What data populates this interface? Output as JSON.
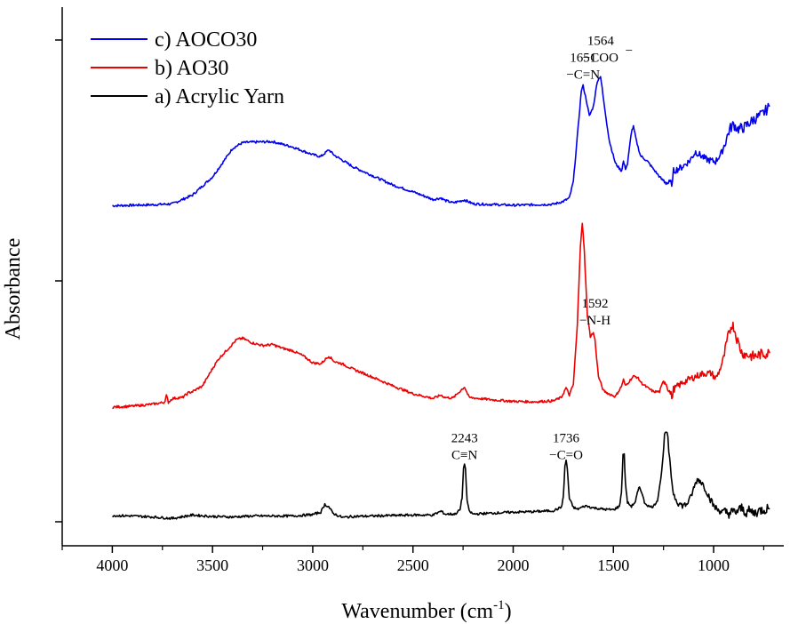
{
  "chart_data": {
    "type": "line",
    "title": "",
    "xlabel": "Wavenumber (cm",
    "xlabel_sup": "-1",
    "xlabel_close": ")",
    "ylabel": "Absorbance",
    "xlim": [
      4250,
      650
    ],
    "x_reversed": true,
    "ylim": [
      0,
      1
    ],
    "x_ticks": [
      4000,
      3500,
      3000,
      2500,
      2000,
      1500,
      1000
    ],
    "grid": false,
    "legend_position": "top-left",
    "series": [
      {
        "name": "c) AOCO30",
        "color": "#0000ee",
        "baseline": 0.655,
        "points": [
          [
            4000,
            0.656
          ],
          [
            3800,
            0.658
          ],
          [
            3700,
            0.66
          ],
          [
            3600,
            0.678
          ],
          [
            3500,
            0.716
          ],
          [
            3450,
            0.745
          ],
          [
            3400,
            0.775
          ],
          [
            3350,
            0.787
          ],
          [
            3300,
            0.788
          ],
          [
            3200,
            0.789
          ],
          [
            3100,
            0.778
          ],
          [
            3000,
            0.762
          ],
          [
            2960,
            0.758
          ],
          [
            2920,
            0.772
          ],
          [
            2890,
            0.76
          ],
          [
            2850,
            0.75
          ],
          [
            2800,
            0.737
          ],
          [
            2700,
            0.718
          ],
          [
            2600,
            0.699
          ],
          [
            2500,
            0.685
          ],
          [
            2400,
            0.669
          ],
          [
            2360,
            0.672
          ],
          [
            2340,
            0.667
          ],
          [
            2300,
            0.662
          ],
          [
            2243,
            0.668
          ],
          [
            2200,
            0.66
          ],
          [
            2000,
            0.657
          ],
          [
            1900,
            0.658
          ],
          [
            1800,
            0.659
          ],
          [
            1750,
            0.665
          ],
          [
            1720,
            0.672
          ],
          [
            1700,
            0.706
          ],
          [
            1680,
            0.8
          ],
          [
            1660,
            0.895
          ],
          [
            1651,
            0.905
          ],
          [
            1635,
            0.875
          ],
          [
            1620,
            0.842
          ],
          [
            1600,
            0.862
          ],
          [
            1580,
            0.915
          ],
          [
            1564,
            0.925
          ],
          [
            1545,
            0.862
          ],
          [
            1520,
            0.79
          ],
          [
            1490,
            0.744
          ],
          [
            1460,
            0.728
          ],
          [
            1450,
            0.748
          ],
          [
            1440,
            0.733
          ],
          [
            1430,
            0.742
          ],
          [
            1410,
            0.81
          ],
          [
            1400,
            0.82
          ],
          [
            1385,
            0.79
          ],
          [
            1365,
            0.76
          ],
          [
            1330,
            0.748
          ],
          [
            1300,
            0.732
          ],
          [
            1260,
            0.711
          ],
          [
            1230,
            0.703
          ],
          [
            1205,
            0.703
          ],
          [
            1200,
            0.728
          ],
          [
            1160,
            0.736
          ],
          [
            1120,
            0.749
          ],
          [
            1100,
            0.762
          ],
          [
            1090,
            0.768
          ],
          [
            1070,
            0.762
          ],
          [
            1040,
            0.753
          ],
          [
            1010,
            0.749
          ],
          [
            990,
            0.748
          ],
          [
            960,
            0.766
          ],
          [
            940,
            0.79
          ],
          [
            920,
            0.815
          ],
          [
            900,
            0.825
          ],
          [
            880,
            0.815
          ],
          [
            850,
            0.818
          ],
          [
            800,
            0.835
          ],
          [
            760,
            0.845
          ],
          [
            720,
            0.862
          ]
        ]
      },
      {
        "name": "b) AO30",
        "color": "#ee0000",
        "baseline": 0.237,
        "points": [
          [
            4000,
            0.238
          ],
          [
            3900,
            0.24
          ],
          [
            3800,
            0.244
          ],
          [
            3740,
            0.248
          ],
          [
            3730,
            0.262
          ],
          [
            3720,
            0.248
          ],
          [
            3700,
            0.256
          ],
          [
            3650,
            0.258
          ],
          [
            3620,
            0.268
          ],
          [
            3600,
            0.27
          ],
          [
            3550,
            0.282
          ],
          [
            3500,
            0.318
          ],
          [
            3470,
            0.338
          ],
          [
            3420,
            0.36
          ],
          [
            3380,
            0.378
          ],
          [
            3350,
            0.381
          ],
          [
            3300,
            0.371
          ],
          [
            3250,
            0.366
          ],
          [
            3200,
            0.368
          ],
          [
            3150,
            0.36
          ],
          [
            3100,
            0.355
          ],
          [
            3050,
            0.345
          ],
          [
            3000,
            0.33
          ],
          [
            2960,
            0.328
          ],
          [
            2920,
            0.344
          ],
          [
            2890,
            0.332
          ],
          [
            2860,
            0.329
          ],
          [
            2800,
            0.317
          ],
          [
            2700,
            0.3
          ],
          [
            2600,
            0.282
          ],
          [
            2500,
            0.266
          ],
          [
            2400,
            0.256
          ],
          [
            2360,
            0.263
          ],
          [
            2340,
            0.258
          ],
          [
            2300,
            0.257
          ],
          [
            2243,
            0.28
          ],
          [
            2220,
            0.258
          ],
          [
            2100,
            0.253
          ],
          [
            2000,
            0.25
          ],
          [
            1900,
            0.249
          ],
          [
            1800,
            0.251
          ],
          [
            1760,
            0.258
          ],
          [
            1736,
            0.278
          ],
          [
            1720,
            0.263
          ],
          [
            1700,
            0.285
          ],
          [
            1680,
            0.408
          ],
          [
            1665,
            0.572
          ],
          [
            1655,
            0.62
          ],
          [
            1645,
            0.56
          ],
          [
            1630,
            0.428
          ],
          [
            1615,
            0.385
          ],
          [
            1600,
            0.392
          ],
          [
            1592,
            0.378
          ],
          [
            1575,
            0.302
          ],
          [
            1550,
            0.272
          ],
          [
            1520,
            0.265
          ],
          [
            1490,
            0.26
          ],
          [
            1460,
            0.281
          ],
          [
            1450,
            0.295
          ],
          [
            1440,
            0.282
          ],
          [
            1420,
            0.292
          ],
          [
            1400,
            0.302
          ],
          [
            1380,
            0.3
          ],
          [
            1360,
            0.288
          ],
          [
            1330,
            0.278
          ],
          [
            1300,
            0.27
          ],
          [
            1270,
            0.27
          ],
          [
            1250,
            0.293
          ],
          [
            1240,
            0.29
          ],
          [
            1220,
            0.27
          ],
          [
            1205,
            0.258
          ],
          [
            1200,
            0.275
          ],
          [
            1150,
            0.29
          ],
          [
            1100,
            0.3
          ],
          [
            1050,
            0.308
          ],
          [
            1010,
            0.308
          ],
          [
            990,
            0.297
          ],
          [
            970,
            0.314
          ],
          [
            950,
            0.34
          ],
          [
            930,
            0.38
          ],
          [
            910,
            0.41
          ],
          [
            900,
            0.405
          ],
          [
            880,
            0.375
          ],
          [
            860,
            0.352
          ],
          [
            840,
            0.347
          ],
          [
            800,
            0.343
          ],
          [
            760,
            0.348
          ],
          [
            720,
            0.35
          ]
        ]
      },
      {
        "name": "a) Acrylic Yarn",
        "color": "#000000",
        "baseline": 0.0,
        "points": [
          [
            4000,
            0.013
          ],
          [
            3900,
            0.012
          ],
          [
            3800,
            0.01
          ],
          [
            3700,
            0.007
          ],
          [
            3600,
            0.014
          ],
          [
            3500,
            0.011
          ],
          [
            3400,
            0.01
          ],
          [
            3300,
            0.012
          ],
          [
            3200,
            0.012
          ],
          [
            3100,
            0.012
          ],
          [
            3000,
            0.015
          ],
          [
            2960,
            0.02
          ],
          [
            2940,
            0.036
          ],
          [
            2920,
            0.031
          ],
          [
            2900,
            0.018
          ],
          [
            2870,
            0.012
          ],
          [
            2850,
            0.009
          ],
          [
            2800,
            0.011
          ],
          [
            2700,
            0.012
          ],
          [
            2600,
            0.013
          ],
          [
            2500,
            0.014
          ],
          [
            2400,
            0.014
          ],
          [
            2360,
            0.022
          ],
          [
            2340,
            0.016
          ],
          [
            2290,
            0.016
          ],
          [
            2265,
            0.025
          ],
          [
            2255,
            0.05
          ],
          [
            2248,
            0.11
          ],
          [
            2243,
            0.122
          ],
          [
            2238,
            0.108
          ],
          [
            2230,
            0.045
          ],
          [
            2220,
            0.022
          ],
          [
            2200,
            0.016
          ],
          [
            2100,
            0.018
          ],
          [
            2000,
            0.02
          ],
          [
            1900,
            0.021
          ],
          [
            1800,
            0.023
          ],
          [
            1760,
            0.03
          ],
          [
            1750,
            0.05
          ],
          [
            1742,
            0.115
          ],
          [
            1736,
            0.128
          ],
          [
            1730,
            0.11
          ],
          [
            1720,
            0.048
          ],
          [
            1700,
            0.03
          ],
          [
            1680,
            0.026
          ],
          [
            1640,
            0.033
          ],
          [
            1600,
            0.029
          ],
          [
            1550,
            0.026
          ],
          [
            1500,
            0.025
          ],
          [
            1470,
            0.032
          ],
          [
            1460,
            0.06
          ],
          [
            1452,
            0.138
          ],
          [
            1446,
            0.14
          ],
          [
            1440,
            0.08
          ],
          [
            1430,
            0.04
          ],
          [
            1410,
            0.032
          ],
          [
            1390,
            0.042
          ],
          [
            1380,
            0.06
          ],
          [
            1370,
            0.072
          ],
          [
            1360,
            0.063
          ],
          [
            1345,
            0.04
          ],
          [
            1320,
            0.031
          ],
          [
            1300,
            0.032
          ],
          [
            1280,
            0.045
          ],
          [
            1260,
            0.1
          ],
          [
            1245,
            0.175
          ],
          [
            1236,
            0.188
          ],
          [
            1228,
            0.17
          ],
          [
            1215,
            0.105
          ],
          [
            1200,
            0.058
          ],
          [
            1180,
            0.041
          ],
          [
            1160,
            0.034
          ],
          [
            1140,
            0.035
          ],
          [
            1120,
            0.045
          ],
          [
            1100,
            0.068
          ],
          [
            1085,
            0.085
          ],
          [
            1075,
            0.088
          ],
          [
            1060,
            0.082
          ],
          [
            1040,
            0.068
          ],
          [
            1020,
            0.05
          ],
          [
            1000,
            0.033
          ],
          [
            980,
            0.025
          ],
          [
            950,
            0.02
          ],
          [
            920,
            0.018
          ],
          [
            900,
            0.02
          ],
          [
            880,
            0.022
          ],
          [
            860,
            0.028
          ],
          [
            840,
            0.02
          ],
          [
            820,
            0.022
          ],
          [
            800,
            0.018
          ],
          [
            760,
            0.025
          ],
          [
            720,
            0.028
          ]
        ]
      }
    ],
    "annotations": [
      {
        "lines": [
          "1651",
          "−C=N"
        ],
        "x": 1651,
        "y": 0.955
      },
      {
        "lines": [
          "1564",
          "−COO"
        ],
        "x": 1564,
        "y": 0.99,
        "sup": "−"
      },
      {
        "lines": [
          "1592",
          "−N-H"
        ],
        "x": 1592,
        "y": 0.445
      },
      {
        "lines": [
          "2243",
          "C≡N"
        ],
        "x": 2243,
        "y": 0.165
      },
      {
        "lines": [
          "1736",
          "−C=O"
        ],
        "x": 1736,
        "y": 0.165
      }
    ]
  }
}
